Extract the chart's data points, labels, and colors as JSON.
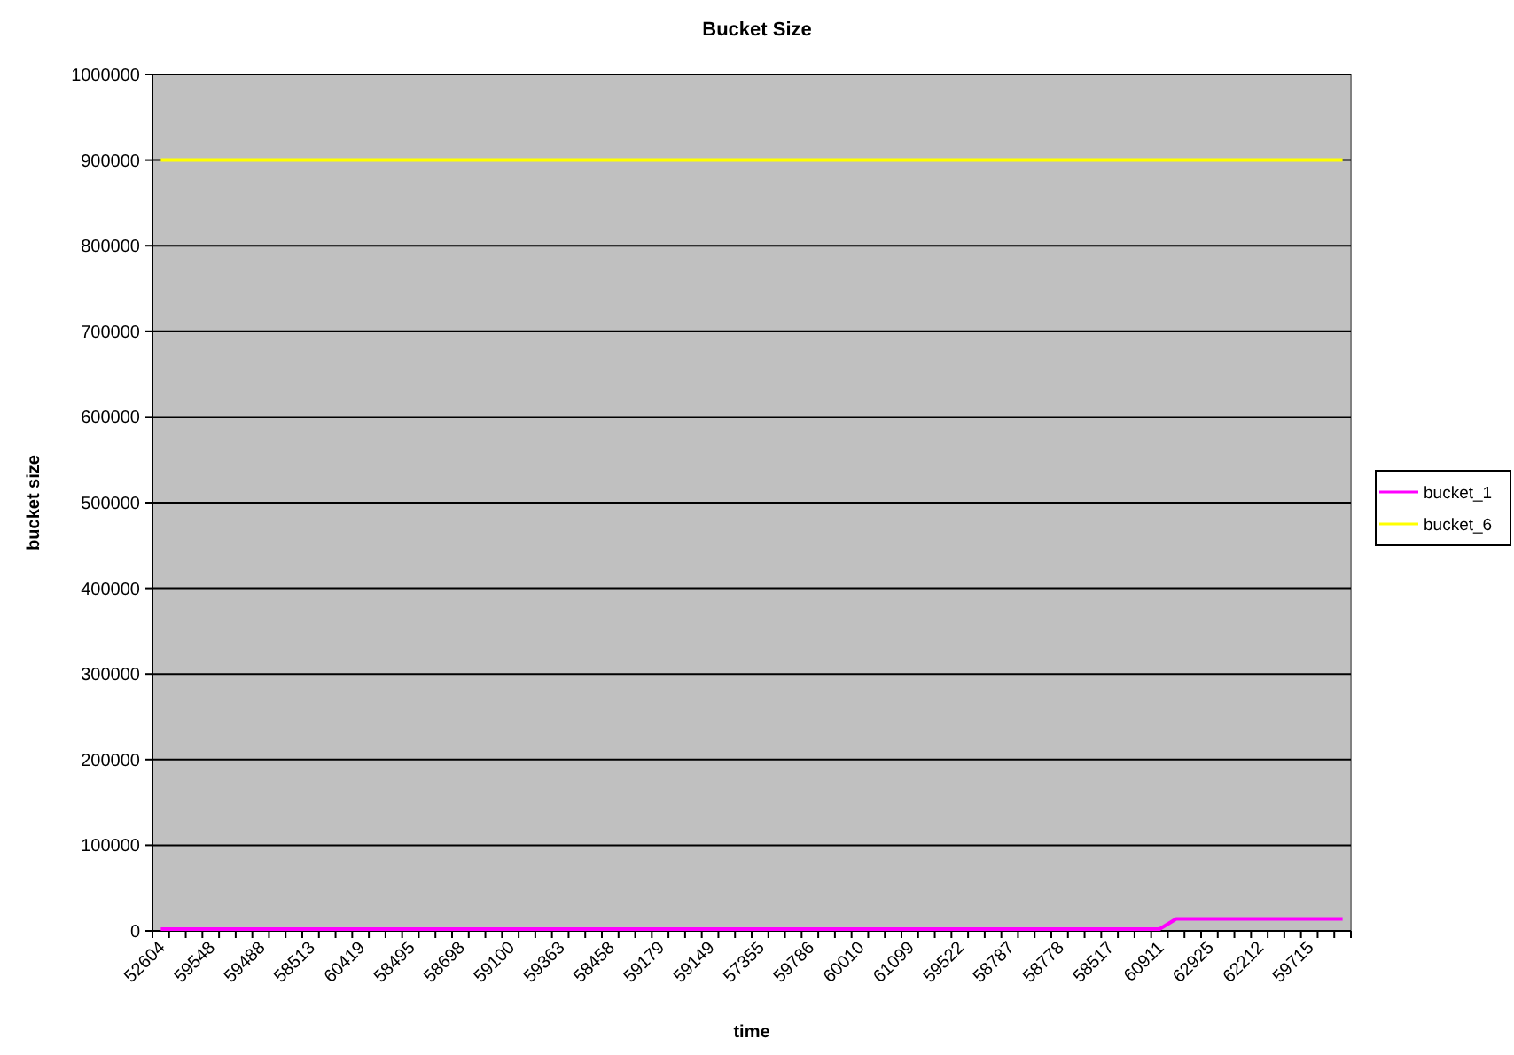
{
  "chart_data": {
    "type": "line",
    "title": "Bucket Size",
    "xlabel": "time",
    "ylabel": "bucket size",
    "categories": [
      "52604",
      null,
      null,
      "59548",
      null,
      null,
      "59488",
      null,
      null,
      "58513",
      null,
      null,
      "60419",
      null,
      null,
      "58495",
      null,
      null,
      "58698",
      null,
      null,
      "59100",
      null,
      null,
      "59363",
      null,
      null,
      "58458",
      null,
      null,
      "59179",
      null,
      null,
      "59149",
      null,
      null,
      "57355",
      null,
      null,
      "59786",
      null,
      null,
      "60010",
      null,
      null,
      "61099",
      null,
      null,
      "59522",
      null,
      null,
      "58787",
      null,
      null,
      "58778",
      null,
      null,
      "58517",
      null,
      null,
      "60911",
      null,
      null,
      "62925",
      null,
      null,
      "62212",
      null,
      null,
      "59715",
      null,
      null
    ],
    "series": [
      {
        "name": "bucket_1",
        "color": "#ff00ff",
        "values": [
          2000,
          2000,
          2000,
          2000,
          2000,
          2000,
          2000,
          2000,
          2000,
          2000,
          2000,
          2000,
          2000,
          2000,
          2000,
          2000,
          2000,
          2000,
          2000,
          2000,
          2000,
          2000,
          2000,
          2000,
          2000,
          2000,
          2000,
          2000,
          2000,
          2000,
          2000,
          2000,
          2000,
          2000,
          2000,
          2000,
          2000,
          2000,
          2000,
          2000,
          2000,
          2000,
          2000,
          2000,
          2000,
          2000,
          2000,
          2000,
          2000,
          2000,
          2000,
          2000,
          2000,
          2000,
          2000,
          2000,
          2000,
          2000,
          2000,
          2000,
          2000,
          14000,
          14000,
          14000,
          14000,
          14000,
          14000,
          14000,
          14000,
          14000,
          14000,
          14000
        ]
      },
      {
        "name": "bucket_6",
        "color": "#ffff00",
        "values": [
          900000,
          900000,
          900000,
          900000,
          900000,
          900000,
          900000,
          900000,
          900000,
          900000,
          900000,
          900000,
          900000,
          900000,
          900000,
          900000,
          900000,
          900000,
          900000,
          900000,
          900000,
          900000,
          900000,
          900000,
          900000,
          900000,
          900000,
          900000,
          900000,
          900000,
          900000,
          900000,
          900000,
          900000,
          900000,
          900000,
          900000,
          900000,
          900000,
          900000,
          900000,
          900000,
          900000,
          900000,
          900000,
          900000,
          900000,
          900000,
          900000,
          900000,
          900000,
          900000,
          900000,
          900000,
          900000,
          900000,
          900000,
          900000,
          900000,
          900000,
          900000,
          900000,
          900000,
          900000,
          900000,
          900000,
          900000,
          900000,
          900000,
          900000,
          900000,
          900000
        ]
      }
    ],
    "ylim": [
      0,
      1000000
    ],
    "yticks": [
      0,
      100000,
      200000,
      300000,
      400000,
      500000,
      600000,
      700000,
      800000,
      900000,
      1000000
    ],
    "grid": "y",
    "legend": "right",
    "line_style": "solid"
  }
}
